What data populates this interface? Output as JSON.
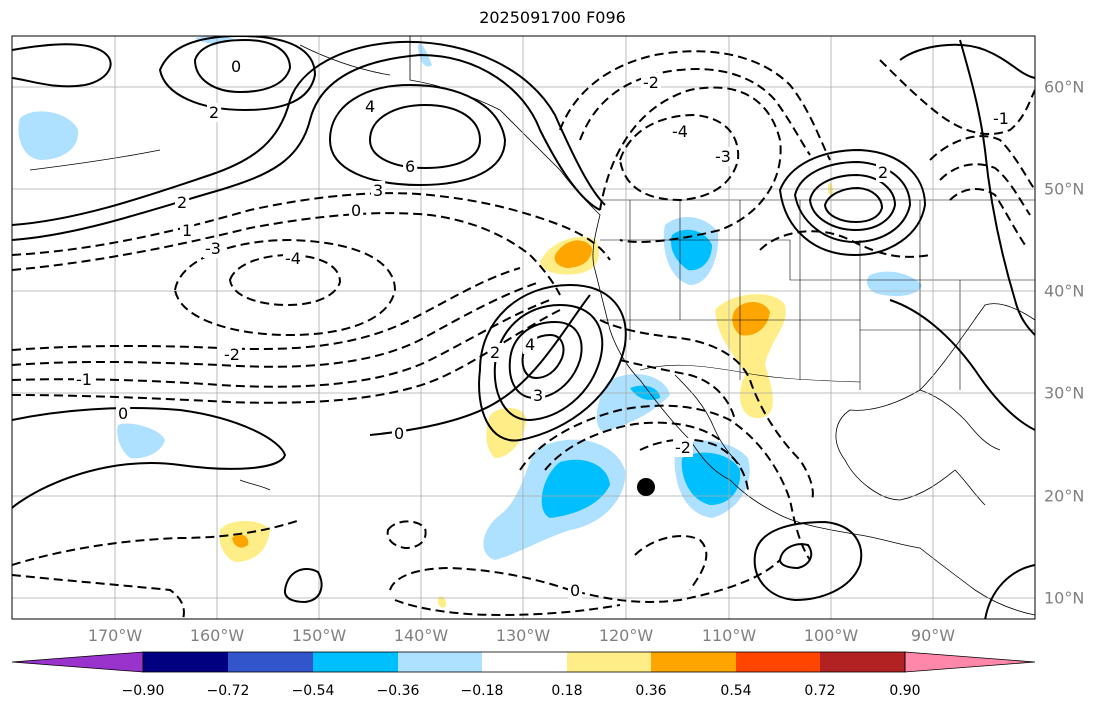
{
  "title": "2025091700 F096",
  "map": {
    "lon_range": [
      -180,
      -80
    ],
    "lat_range": [
      8,
      65
    ],
    "grid": true,
    "lon_labels": [
      "170°W",
      "160°W",
      "150°W",
      "140°W",
      "130°W",
      "120°W",
      "110°W",
      "100°W",
      "90°W"
    ],
    "lat_labels": [
      "60°N",
      "50°N",
      "40°N",
      "30°N",
      "20°N",
      "10°N"
    ],
    "marker": {
      "lon": -118,
      "lat": 21,
      "symbol": "filled-circle"
    },
    "contour_labels": [
      "0",
      "2",
      "4",
      "6",
      "3",
      "2",
      "1",
      "0",
      "-1",
      "-2",
      "-3",
      "-4",
      "0",
      "2",
      "4",
      "3",
      "0",
      "2",
      "-2",
      "-4",
      "-3",
      "-2",
      "-1",
      "0"
    ]
  },
  "colorbar": {
    "tick_labels": [
      "−0.90",
      "−0.72",
      "−0.54",
      "−0.36",
      "−0.18",
      "0.18",
      "0.36",
      "0.54",
      "0.72",
      "0.90"
    ],
    "colors": [
      "#9933cc",
      "#000080",
      "#3355cc",
      "#00bfff",
      "#aee0ff",
      "#ffffff",
      "#ffee88",
      "#ffa500",
      "#ff4500",
      "#b22222",
      "#ff88aa"
    ],
    "extend": "both"
  }
}
